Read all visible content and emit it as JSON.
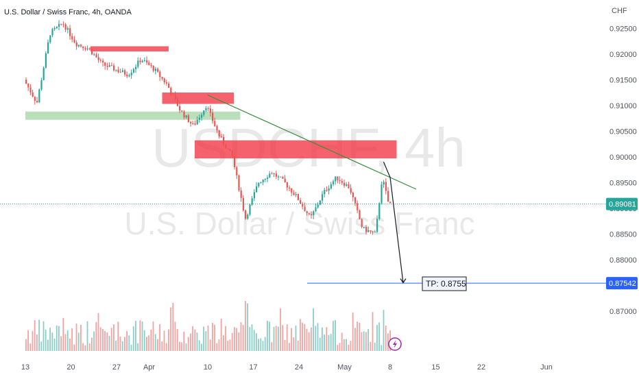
{
  "header": {
    "title": "U.S. Dollar / Swiss Franc, 4h, OANDA"
  },
  "watermark": {
    "symbol": "USDCHF, 4h",
    "name": "U.S. Dollar / Swiss Franc"
  },
  "colors": {
    "up": "#26a69a",
    "down": "#ef5350",
    "resistance": "#f23645",
    "support": "#81c784",
    "trendline": "#388e3c",
    "price_tag": "#26a69a",
    "target": "#2962ff",
    "arrow": "#131722"
  },
  "chart_data": {
    "type": "candlestick",
    "title": "U.S. Dollar / Swiss Franc, 4h, OANDA",
    "currency": "CHF",
    "y_ticks": [
      "0.92500",
      "0.92000",
      "0.91500",
      "0.91000",
      "0.90500",
      "0.90000",
      "0.89500",
      "0.89000",
      "0.88500",
      "0.88000",
      "0.87500",
      "0.87000"
    ],
    "x_ticks": [
      "13",
      "20",
      "27",
      "Apr",
      "10",
      "17",
      "24",
      "May",
      "8",
      "15",
      "22",
      "Jun"
    ],
    "ylim": [
      0.8665,
      0.9265
    ],
    "last_price": {
      "label": "0.89081",
      "value": 0.89081
    },
    "target_line": {
      "label": "0.87542",
      "value": 0.87542
    },
    "tp_label": "TP: 0.8755",
    "path": [
      {
        "t": "2023-03-13",
        "p": 0.915
      },
      {
        "t": "2023-03-15",
        "p": 0.9105
      },
      {
        "t": "2023-03-17",
        "p": 0.924
      },
      {
        "t": "2023-03-19",
        "p": 0.926
      },
      {
        "t": "2023-03-21",
        "p": 0.922
      },
      {
        "t": "2023-03-23",
        "p": 0.921
      },
      {
        "t": "2023-03-25",
        "p": 0.918
      },
      {
        "t": "2023-03-27",
        "p": 0.917
      },
      {
        "t": "2023-03-29",
        "p": 0.916
      },
      {
        "t": "2023-03-31",
        "p": 0.919
      },
      {
        "t": "2023-04-02",
        "p": 0.917
      },
      {
        "t": "2023-04-04",
        "p": 0.914
      },
      {
        "t": "2023-04-06",
        "p": 0.909
      },
      {
        "t": "2023-04-08",
        "p": 0.906
      },
      {
        "t": "2023-04-10",
        "p": 0.91
      },
      {
        "t": "2023-04-12",
        "p": 0.904
      },
      {
        "t": "2023-04-14",
        "p": 0.9
      },
      {
        "t": "2023-04-16",
        "p": 0.888
      },
      {
        "t": "2023-04-18",
        "p": 0.895
      },
      {
        "t": "2023-04-20",
        "p": 0.897
      },
      {
        "t": "2023-04-22",
        "p": 0.895
      },
      {
        "t": "2023-04-24",
        "p": 0.892
      },
      {
        "t": "2023-04-26",
        "p": 0.888
      },
      {
        "t": "2023-04-28",
        "p": 0.893
      },
      {
        "t": "2023-04-30",
        "p": 0.896
      },
      {
        "t": "2023-05-02",
        "p": 0.894
      },
      {
        "t": "2023-05-04",
        "p": 0.886
      },
      {
        "t": "2023-05-06",
        "p": 0.885
      },
      {
        "t": "2023-05-07",
        "p": 0.896
      },
      {
        "t": "2023-05-08",
        "p": 0.8908
      }
    ],
    "zones": [
      {
        "kind": "resistance",
        "from": "2023-03-23",
        "to": "2023-04-04",
        "low": 0.9205,
        "high": 0.9215
      },
      {
        "kind": "resistance",
        "from": "2023-04-03",
        "to": "2023-04-14",
        "low": 0.9103,
        "high": 0.9125
      },
      {
        "kind": "support",
        "from": "2023-03-13",
        "to": "2023-04-15",
        "low": 0.9072,
        "high": 0.9088
      },
      {
        "kind": "resistance",
        "from": "2023-04-08",
        "to": "2023-05-09",
        "low": 0.8997,
        "high": 0.9032
      }
    ],
    "trendline": {
      "from": {
        "t": "2023-04-10",
        "p": 0.912
      },
      "to": {
        "t": "2023-05-12",
        "p": 0.8937
      }
    },
    "projection": [
      {
        "t": "2023-05-07",
        "p": 0.899
      },
      {
        "t": "2023-05-08",
        "p": 0.896
      },
      {
        "t": "2023-05-10",
        "p": 0.8755
      }
    ]
  }
}
